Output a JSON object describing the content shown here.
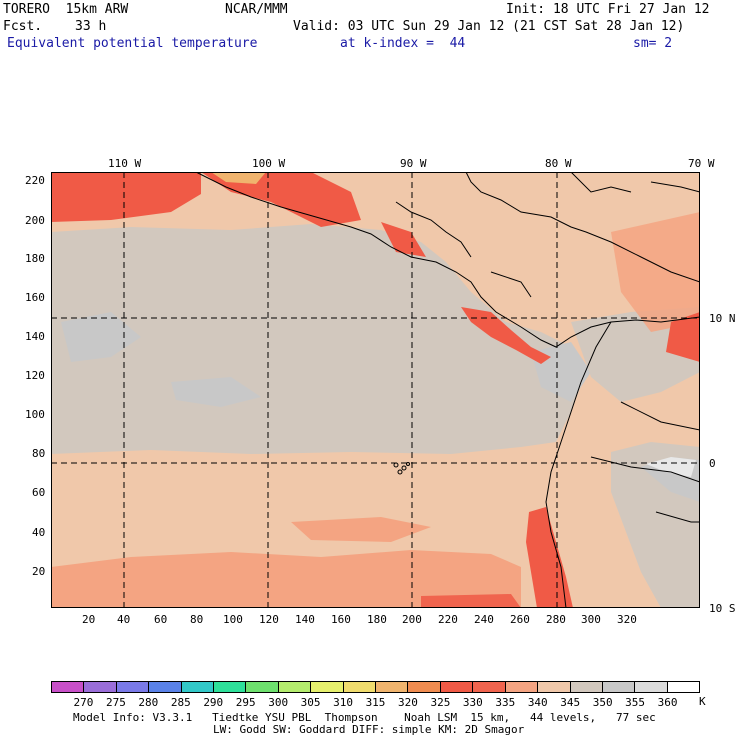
{
  "header": {
    "model": "TORERO  15km ARW",
    "center": "NCAR/MMM",
    "init": "Init: 18 UTC Fri 27 Jan 12",
    "fcst_label": "Fcst.",
    "fcst_value": "33 h",
    "valid": "Valid: 03 UTC Sun 29 Jan 12 (21 CST Sat 28 Jan 12)",
    "field": "Equivalent potential temperature",
    "level": "at k-index =  44",
    "smooth": "sm= 2"
  },
  "map": {
    "top_lon_labels": [
      "110 W",
      "100 W",
      "90 W",
      "80 W",
      "70 W"
    ],
    "right_lat_labels": [
      "10 N",
      "0",
      "10 S"
    ],
    "left_y_ticks": [
      "220",
      "200",
      "180",
      "160",
      "140",
      "120",
      "100",
      "80",
      "60",
      "40",
      "20"
    ],
    "bottom_x_ticks": [
      "20",
      "40",
      "60",
      "80",
      "100",
      "120",
      "140",
      "160",
      "180",
      "200",
      "220",
      "240",
      "260",
      "280",
      "300",
      "320"
    ]
  },
  "colorbar": {
    "unit": "K",
    "labels": [
      "270",
      "275",
      "280",
      "285",
      "290",
      "295",
      "300",
      "305",
      "310",
      "315",
      "320",
      "325",
      "330",
      "335",
      "340",
      "345",
      "350",
      "355",
      "360"
    ],
    "colors": [
      "#c850c8",
      "#9a6ed8",
      "#7a7ae8",
      "#5a82e8",
      "#32c8c8",
      "#2ee09a",
      "#6ee06e",
      "#b4ec6e",
      "#e6f06e",
      "#f0dc6e",
      "#f0b46e",
      "#f08c50",
      "#f05a46",
      "#f0644e",
      "#f4a482",
      "#f0c8aa",
      "#d2c8be",
      "#c8c8c8",
      "#dcdcdc",
      "#ffffff"
    ]
  },
  "footer": {
    "line1": "Model Info: V3.3.1   Tiedtke YSU PBL  Thompson    Noah LSM  15 km,   44 levels,   77 sec",
    "line2": "LW: Godd SW: Goddard DIFF: simple KM: 2D Smagor"
  }
}
